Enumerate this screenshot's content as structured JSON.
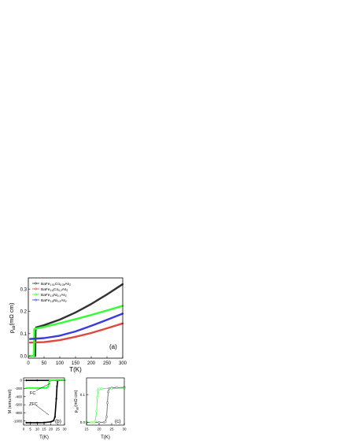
{
  "chart_data": [
    {
      "panel": "(a)",
      "type": "line",
      "xlabel": "T(K)",
      "ylabel": "ρ",
      "ylabel_sub": "ab",
      "ylabel_unit": "(mΩ cm)",
      "xlim": [
        0,
        300
      ],
      "ylim": [
        -0.01,
        0.35
      ],
      "xticks": [
        0,
        50,
        100,
        150,
        200,
        250,
        300
      ],
      "yticks": [
        0.0,
        0.1,
        0.2,
        0.3
      ],
      "legend_position": "top-left",
      "series": [
        {
          "name": "BaFe1.91Co0.09As2",
          "legend_parts": [
            "BaFe",
            "1.91",
            "Co",
            "0.09",
            "As",
            "2"
          ],
          "color": "#333333",
          "x": [
            5,
            22,
            23,
            25,
            50,
            100,
            150,
            200,
            250,
            300
          ],
          "y": [
            0.0,
            0.0,
            0.12,
            0.128,
            0.138,
            0.163,
            0.195,
            0.233,
            0.276,
            0.322
          ]
        },
        {
          "name": "BaFe1.8Co0.2As2",
          "legend_parts": [
            "BaFe",
            "1.8",
            "Co",
            "0.2",
            "As",
            "2"
          ],
          "color": "#e0483f",
          "x": [
            5,
            50,
            100,
            150,
            200,
            250,
            300
          ],
          "y": [
            0.06,
            0.062,
            0.071,
            0.086,
            0.103,
            0.124,
            0.146
          ]
        },
        {
          "name": "BaFe1.9Ni0.1As2",
          "legend_parts": [
            "BaFe",
            "1.9",
            "Ni",
            "0.1",
            "As",
            "2"
          ],
          "color": "#33ff33",
          "x": [
            5,
            18,
            19,
            25,
            50,
            100,
            150,
            200,
            250,
            300
          ],
          "y": [
            0.0,
            0.0,
            0.12,
            0.123,
            0.13,
            0.147,
            0.165,
            0.184,
            0.204,
            0.225
          ]
        },
        {
          "name": "BaFe1.8Ni0.2As2",
          "legend_parts": [
            "BaFe",
            "1.8",
            "Ni",
            "0.2",
            "As",
            "2"
          ],
          "color": "#3b3bdd",
          "x": [
            5,
            50,
            100,
            150,
            200,
            250,
            300
          ],
          "y": [
            0.076,
            0.08,
            0.091,
            0.11,
            0.135,
            0.162,
            0.19
          ]
        }
      ]
    },
    {
      "panel": "(b)",
      "type": "line",
      "xlabel": "T(K)",
      "ylabel": "M (emu/mol)",
      "xlim": [
        0,
        30
      ],
      "ylim": [
        -1100,
        60
      ],
      "xticks": [
        0,
        5,
        10,
        15,
        20,
        25,
        30
      ],
      "yticks": [
        0,
        -200,
        -400,
        -600,
        -800,
        -1000
      ],
      "annotations": [
        "FC",
        "ZFC"
      ],
      "series": [
        {
          "name": "FC",
          "color": "#33ff33",
          "x": [
            2,
            5,
            10,
            15,
            17,
            18,
            19,
            20,
            30
          ],
          "y": [
            -190,
            -190,
            -188,
            -186,
            -184,
            -150,
            -20,
            0,
            0
          ]
        },
        {
          "name": "ZFC",
          "color": "#000000",
          "x": [
            2,
            5,
            10,
            15,
            20,
            22,
            23,
            24,
            24.5,
            25,
            26,
            30
          ],
          "y": [
            -1040,
            -1040,
            -1040,
            -1038,
            -1020,
            -990,
            -900,
            -450,
            -150,
            -10,
            0,
            0
          ]
        },
        {
          "name": "FC",
          "color": "#000000",
          "x": [
            2,
            10,
            20,
            24,
            25,
            30
          ],
          "y": [
            -1,
            -1,
            -1,
            -1,
            0,
            0
          ]
        },
        {
          "name": "ZFC",
          "color": "#33ff33",
          "x": [
            2,
            5,
            10,
            15,
            17,
            18,
            18.5,
            19,
            20,
            30
          ],
          "y": [
            -190,
            -190,
            -190,
            -190,
            -185,
            -160,
            -80,
            -15,
            0,
            0
          ]
        }
      ]
    },
    {
      "panel": "(c)",
      "type": "line",
      "xlabel": "T(K)",
      "ylabel": "ρ",
      "ylabel_sub": "ab",
      "ylabel_unit": "(mΩ cm)",
      "xlim": [
        15,
        30
      ],
      "ylim": [
        -0.01,
        0.16
      ],
      "xticks": [
        15,
        20,
        25,
        30
      ],
      "yticks": [
        0.0,
        0.1
      ],
      "series": [
        {
          "name": "BaFe1.91Co0.09As2",
          "color": "#555555",
          "x": [
            15,
            20,
            22,
            22.5,
            23,
            23.3,
            23.6,
            24,
            25,
            27,
            30
          ],
          "y": [
            0.0,
            0.0,
            0.0,
            0.002,
            0.02,
            0.07,
            0.11,
            0.122,
            0.124,
            0.125,
            0.126
          ]
        },
        {
          "name": "BaFe1.9Ni0.1As2",
          "color": "#33ff33",
          "x": [
            15,
            17,
            18,
            18.5,
            19,
            19.3,
            19.6,
            20,
            21,
            25,
            30
          ],
          "y": [
            0.0,
            0.0,
            0.0,
            0.005,
            0.04,
            0.09,
            0.115,
            0.12,
            0.121,
            0.122,
            0.123
          ]
        }
      ]
    }
  ],
  "labels": {
    "panel_a": "(a)",
    "panel_b": "(b)",
    "panel_c": "(c)",
    "fc": "FC",
    "zfc": "ZFC"
  }
}
